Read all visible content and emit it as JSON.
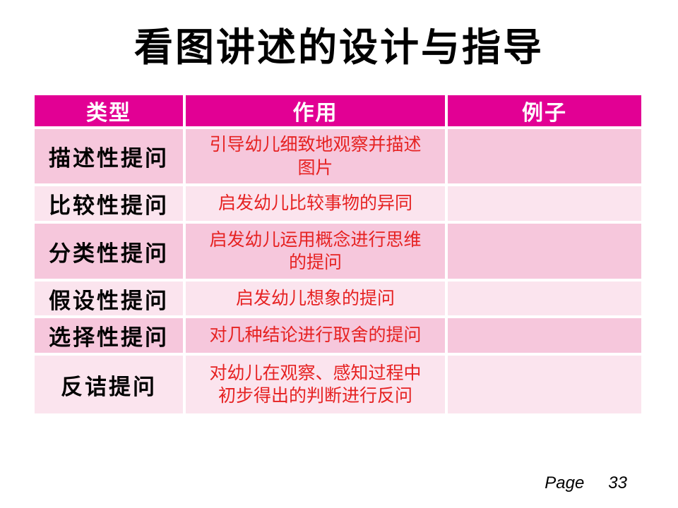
{
  "slide": {
    "title": "看图讲述的设计与指导",
    "page_label": "Page",
    "page_number": "33"
  },
  "table": {
    "headers": [
      "类型",
      "作用",
      "例子"
    ],
    "rows": [
      {
        "type": "描述性提问",
        "function": "引导幼儿细致地观察并描述\n图片",
        "example": ""
      },
      {
        "type": "比较性提问",
        "function": "启发幼儿比较事物的异同",
        "example": ""
      },
      {
        "type": "分类性提问",
        "function": "启发幼儿运用概念进行思维\n的提问",
        "example": ""
      },
      {
        "type": "假设性提问",
        "function": "启发幼儿想象的提问",
        "example": ""
      },
      {
        "type": "选择性提问",
        "function": "对几种结论进行取舍的提问",
        "example": ""
      },
      {
        "type": "反诘提问",
        "function": "对幼儿在观察、感知过程中\n初步得出的判断进行反问",
        "example": ""
      }
    ]
  },
  "colors": {
    "header_bg": "#E20094",
    "row_dark": "#F6C7DC",
    "row_light": "#FBE4EE",
    "function_text": "#E62222",
    "type_text": "#000000"
  }
}
